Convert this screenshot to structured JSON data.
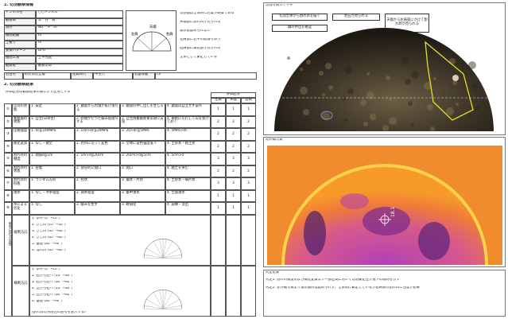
{
  "observation_info": {
    "title": "1. 切羽観察情報",
    "fields": [
      [
        "トンネル名",
        "○○トンネル"
      ],
      [
        "観察日",
        "年　月　日"
      ],
      [
        "測点",
        "No.　+　m"
      ],
      [
        "掘削距離",
        "m"
      ],
      [
        "土被り",
        "m"
      ],
      [
        "支保パターン",
        "DⅠ-a"
      ],
      [
        "掘削工法",
        "上半先進"
      ],
      [
        "観察者",
        "観察太郎"
      ]
    ],
    "diagram_labels": [
      "天端",
      "左肩",
      "右肩"
    ],
    "notes": [
      "切羽面は全体的に岩質が硬質である",
      "天端部に割れ目が見られる",
      "湧水は認められない",
      "左肩部に若干の肌落ちあり",
      "右肩部に風化部が見られる",
      "全体として安定している"
    ],
    "footer": [
      "岩石名",
      "砂岩頁岩互層",
      "地質時代",
      "中生代",
      "岩盤等級",
      "CⅡ"
    ]
  },
  "observation_result": {
    "title": "2. 切羽観察結果",
    "subtitle": "評価区分は観察結果の表に示す区分とする",
    "eval_header": "評価区分",
    "eval_cols": [
      "左肩",
      "天端",
      "右肩"
    ],
    "rows": [
      {
        "no": "①",
        "item": "切羽の状態",
        "options": [
          "1. 安定",
          "2. 鏡面から岩塊が抜け落ちる",
          "3. 鏡面の押し出しを生じる",
          "4. 鏡面は自立せず崩れ"
        ],
        "eval": [
          "1",
          "1",
          "1"
        ]
      },
      {
        "no": "②",
        "item": "素掘面の状態",
        "options": [
          "1. 自立(日単位)",
          "2. 時間がたつと緩み肌落ちする",
          "3. 自立困難掘削後早期に支保",
          "4. 掘削に先行して山を受けておく"
        ],
        "eval": [
          "2",
          "2",
          "2"
        ]
      },
      {
        "no": "③",
        "item": "圧縮強度",
        "options": [
          "1. σc≧100MPa",
          "2. 100>σc≧20MPa",
          "3. 20>σc≧5MPa",
          "4. 5MPa>σc"
        ],
        "eval": [
          "2",
          "2",
          "2"
        ]
      },
      {
        "no": "④",
        "item": "風化変質",
        "options": [
          "1. なし・健全",
          "2. 岩目に沿って変色",
          "3. 全体に変色強度低下",
          "4. 土砂状・粘土状"
        ],
        "eval": [
          "2",
          "2",
          "2"
        ]
      },
      {
        "no": "⑤",
        "item": "割れ目の頻度",
        "options": [
          "1. 間隔d≧1m",
          "2. 1m>d≧20cm",
          "3. 20cm>d≧5cm",
          "4. 5cm>d"
        ],
        "eval": [
          "3",
          "3",
          "3"
        ]
      },
      {
        "no": "⑥",
        "item": "割れ目の状態",
        "options": [
          "1. 密着",
          "2. 部分的に開口",
          "3. 開口",
          "4. 粘土を挟む"
        ],
        "eval": [
          "2",
          "2",
          "2"
        ]
      },
      {
        "no": "⑦",
        "item": "割れ目の形態",
        "options": [
          "1. ランダム方形",
          "2. 柱状",
          "3. 層状・片状",
          "4. 土砂状・細片状"
        ],
        "eval": [
          "3",
          "3",
          "3"
        ]
      },
      {
        "no": "⑧",
        "item": "湧水",
        "options": [
          "1. なし・滲水程度",
          "2. 滴水程度",
          "3. 集中湧水",
          "4. 全面湧水"
        ],
        "eval": [
          "1",
          "1",
          "1"
        ]
      },
      {
        "no": "⑨",
        "item": "水による劣化",
        "options": [
          "1. なし",
          "2. 緩みを生ず",
          "3. 軟弱化",
          "4. 崩壊・流出"
        ],
        "eval": [
          "1",
          "1",
          "1"
        ]
      }
    ],
    "orientation": {
      "label": "割れ目の方向性",
      "groups": [
        {
          "name": "縦断方向",
          "lines": [
            "1. 水平 (0°〜10°)",
            "2. さし目 (10°〜30°)",
            "3. さし目 (30°〜60°)",
            "4. さし目 (60°〜80°)",
            "5. 垂直 (80°〜90°)",
            "6. 流れ目 (60°〜80°)"
          ]
        },
        {
          "name": "横断方向",
          "lines": [
            "1. 水平 (0°〜10°)",
            "2. 右から左へ (10°〜30°)",
            "3. 右から左へ (30°〜60°)",
            "4. 左から右へ (10°〜30°)",
            "5. 左から右へ (30°〜60°)",
            "6. 垂直 (80°〜90°)"
          ]
        }
      ],
      "note": "(割れ目の方向性の記号を記入する)"
    }
  },
  "photo_panel": {
    "title": "切羽写真スケッチ",
    "buttons": [
      "切羽全体から割れ目を描く",
      "岩石が見られる",
      "鏡の押出を確認",
      "天端から右肩部にかけて割れ目が見られる"
    ]
  },
  "thermal_panel": {
    "title": "赤外線写真",
    "marker": "18.1"
  },
  "result_panel": {
    "title": "判定結果",
    "lines": [
      "判定1: 割れ目頻度および風化変質より一部区間において切羽安定性が低下の傾向を示す",
      "判定2: 赤外線写真より湧水箇所は認められず、全体的に安定しているが右肩部の割れ目に注意が必要"
    ]
  }
}
